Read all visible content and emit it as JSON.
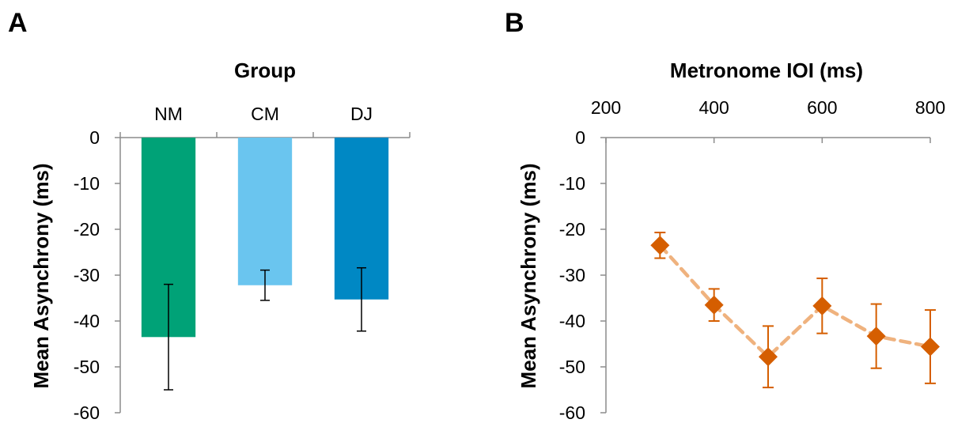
{
  "panels": {
    "a": {
      "letter": "A"
    },
    "b": {
      "letter": "B"
    }
  },
  "chart_data": [
    {
      "type": "bar",
      "xlabel": "Group",
      "ylabel": "Mean Asynchrony (ms)",
      "x_axis_position": "top",
      "categories": [
        "NM",
        "CM",
        "DJ"
      ],
      "values": [
        -43.5,
        -32.2,
        -35.3
      ],
      "error": [
        11.5,
        3.3,
        6.9
      ],
      "colors": [
        "#00a277",
        "#6ac5ef",
        "#0088c4"
      ],
      "ylim": [
        -60,
        0
      ],
      "yticks": [
        0,
        -10,
        -20,
        -30,
        -40,
        -50,
        -60
      ],
      "grid": false,
      "legend": "none"
    },
    {
      "type": "line",
      "xlabel": "Metronome IOI (ms)",
      "ylabel": "Mean Asynchrony (ms)",
      "x_axis_position": "top",
      "x": [
        300,
        400,
        500,
        600,
        700,
        800
      ],
      "y": [
        -23.5,
        -36.5,
        -47.8,
        -36.7,
        -43.3,
        -45.6
      ],
      "error": [
        2.8,
        3.5,
        6.7,
        6.0,
        7.0,
        8.0
      ],
      "marker_color": "#d55e00",
      "line_color": "#efb27e",
      "line_style": "dashed",
      "marker": "diamond",
      "xlim": [
        200,
        800
      ],
      "xticks": [
        200,
        400,
        600,
        800
      ],
      "ylim": [
        -60,
        0
      ],
      "yticks": [
        0,
        -10,
        -20,
        -30,
        -40,
        -50,
        -60
      ],
      "grid": false,
      "legend": "none"
    }
  ]
}
